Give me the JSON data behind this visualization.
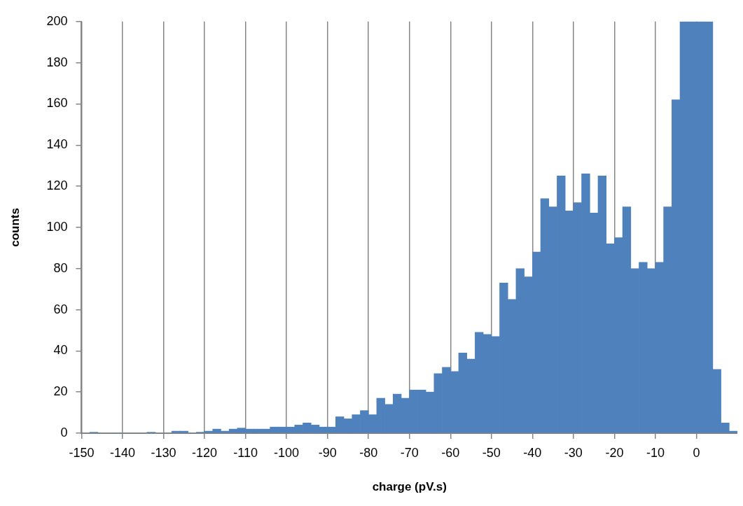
{
  "chart_data": {
    "type": "histogram",
    "xlabel": "charge (pV.s)",
    "ylabel": "counts",
    "color": "#4f81bd",
    "bins": [
      -150,
      -148,
      -146,
      -144,
      -142,
      -140,
      -138,
      -136,
      -134,
      -132,
      -130,
      -128,
      -126,
      -124,
      -122,
      -120,
      -118,
      -116,
      -114,
      -112,
      -110,
      -108,
      -106,
      -104,
      -102,
      -100,
      -98,
      -96,
      -94,
      -92,
      -90,
      -88,
      -86,
      -84,
      -82,
      -80,
      -78,
      -76,
      -74,
      -72,
      -70,
      -68,
      -66,
      -64,
      -62,
      -60,
      -58,
      -56,
      -54,
      -52,
      -50,
      -48,
      -46,
      -44,
      -42,
      -40,
      -38,
      -36,
      -34,
      -32,
      -30,
      -28,
      -26,
      -24,
      -22,
      -20,
      -18,
      -16,
      -14,
      -12,
      -10,
      -8,
      -6,
      -4,
      -2,
      0,
      2,
      4,
      6,
      8,
      10
    ],
    "values": [
      0,
      0.5,
      0,
      0,
      0,
      0,
      0,
      0,
      0.5,
      0,
      0,
      1,
      1,
      0,
      0.5,
      1,
      2,
      1,
      2,
      2.5,
      2,
      2,
      2,
      3,
      3,
      3,
      4,
      5,
      4,
      3,
      3,
      8,
      7,
      9,
      11,
      9,
      17,
      14,
      19,
      17,
      21,
      21,
      20,
      29,
      32,
      30,
      39,
      36,
      49,
      48,
      47,
      73,
      65,
      80,
      76,
      88,
      114,
      110,
      125,
      108,
      112,
      126,
      107,
      125,
      92,
      95,
      110,
      80,
      83,
      80,
      83,
      110,
      162,
      200,
      200,
      200,
      200,
      31,
      5,
      1
    ],
    "xlim": [
      -150,
      10
    ],
    "xticks": [
      -150,
      -140,
      -130,
      -120,
      -110,
      -100,
      -90,
      -80,
      -70,
      -60,
      -50,
      -40,
      -30,
      -20,
      -10,
      0
    ],
    "ylim": [
      0,
      200
    ],
    "yticks": [
      0,
      20,
      40,
      60,
      80,
      100,
      120,
      140,
      160,
      180,
      200
    ],
    "grid": "x"
  }
}
